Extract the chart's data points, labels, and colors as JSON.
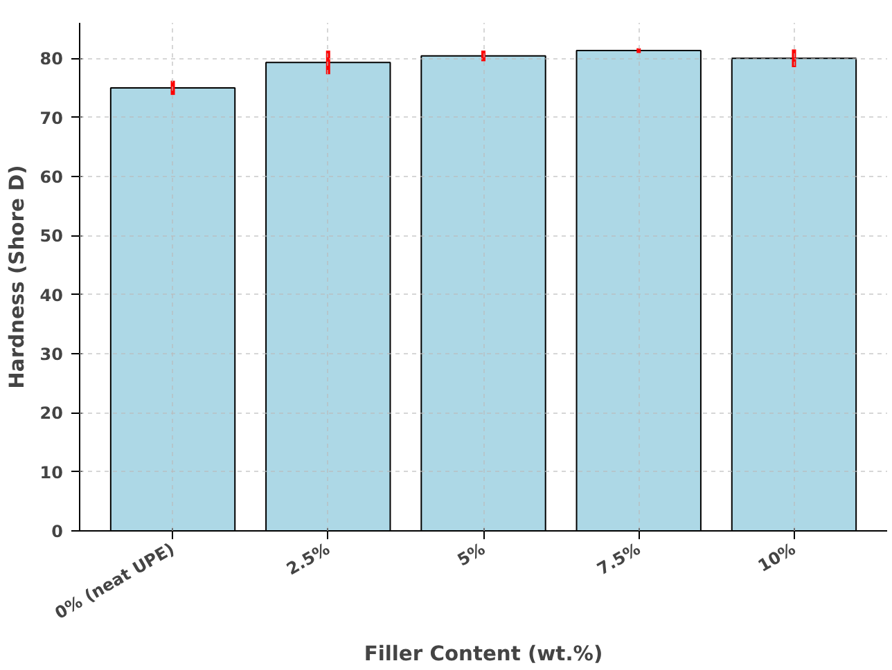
{
  "chart_data": {
    "type": "bar",
    "xlabel": "Filler Content (wt.%)",
    "ylabel": "Hardness (Shore D)",
    "categories": [
      "0% (neat UPE)",
      "2.5%",
      "5%",
      "7.5%",
      "10%"
    ],
    "values": [
      75.0,
      79.3,
      80.4,
      81.3,
      80.0
    ],
    "errors": [
      1.2,
      2.0,
      0.9,
      0.4,
      1.5
    ],
    "color": "#add8e6",
    "ylim": [
      0,
      86
    ],
    "yticks": [
      0,
      10,
      20,
      30,
      40,
      50,
      60,
      70,
      80
    ],
    "grid": true
  }
}
